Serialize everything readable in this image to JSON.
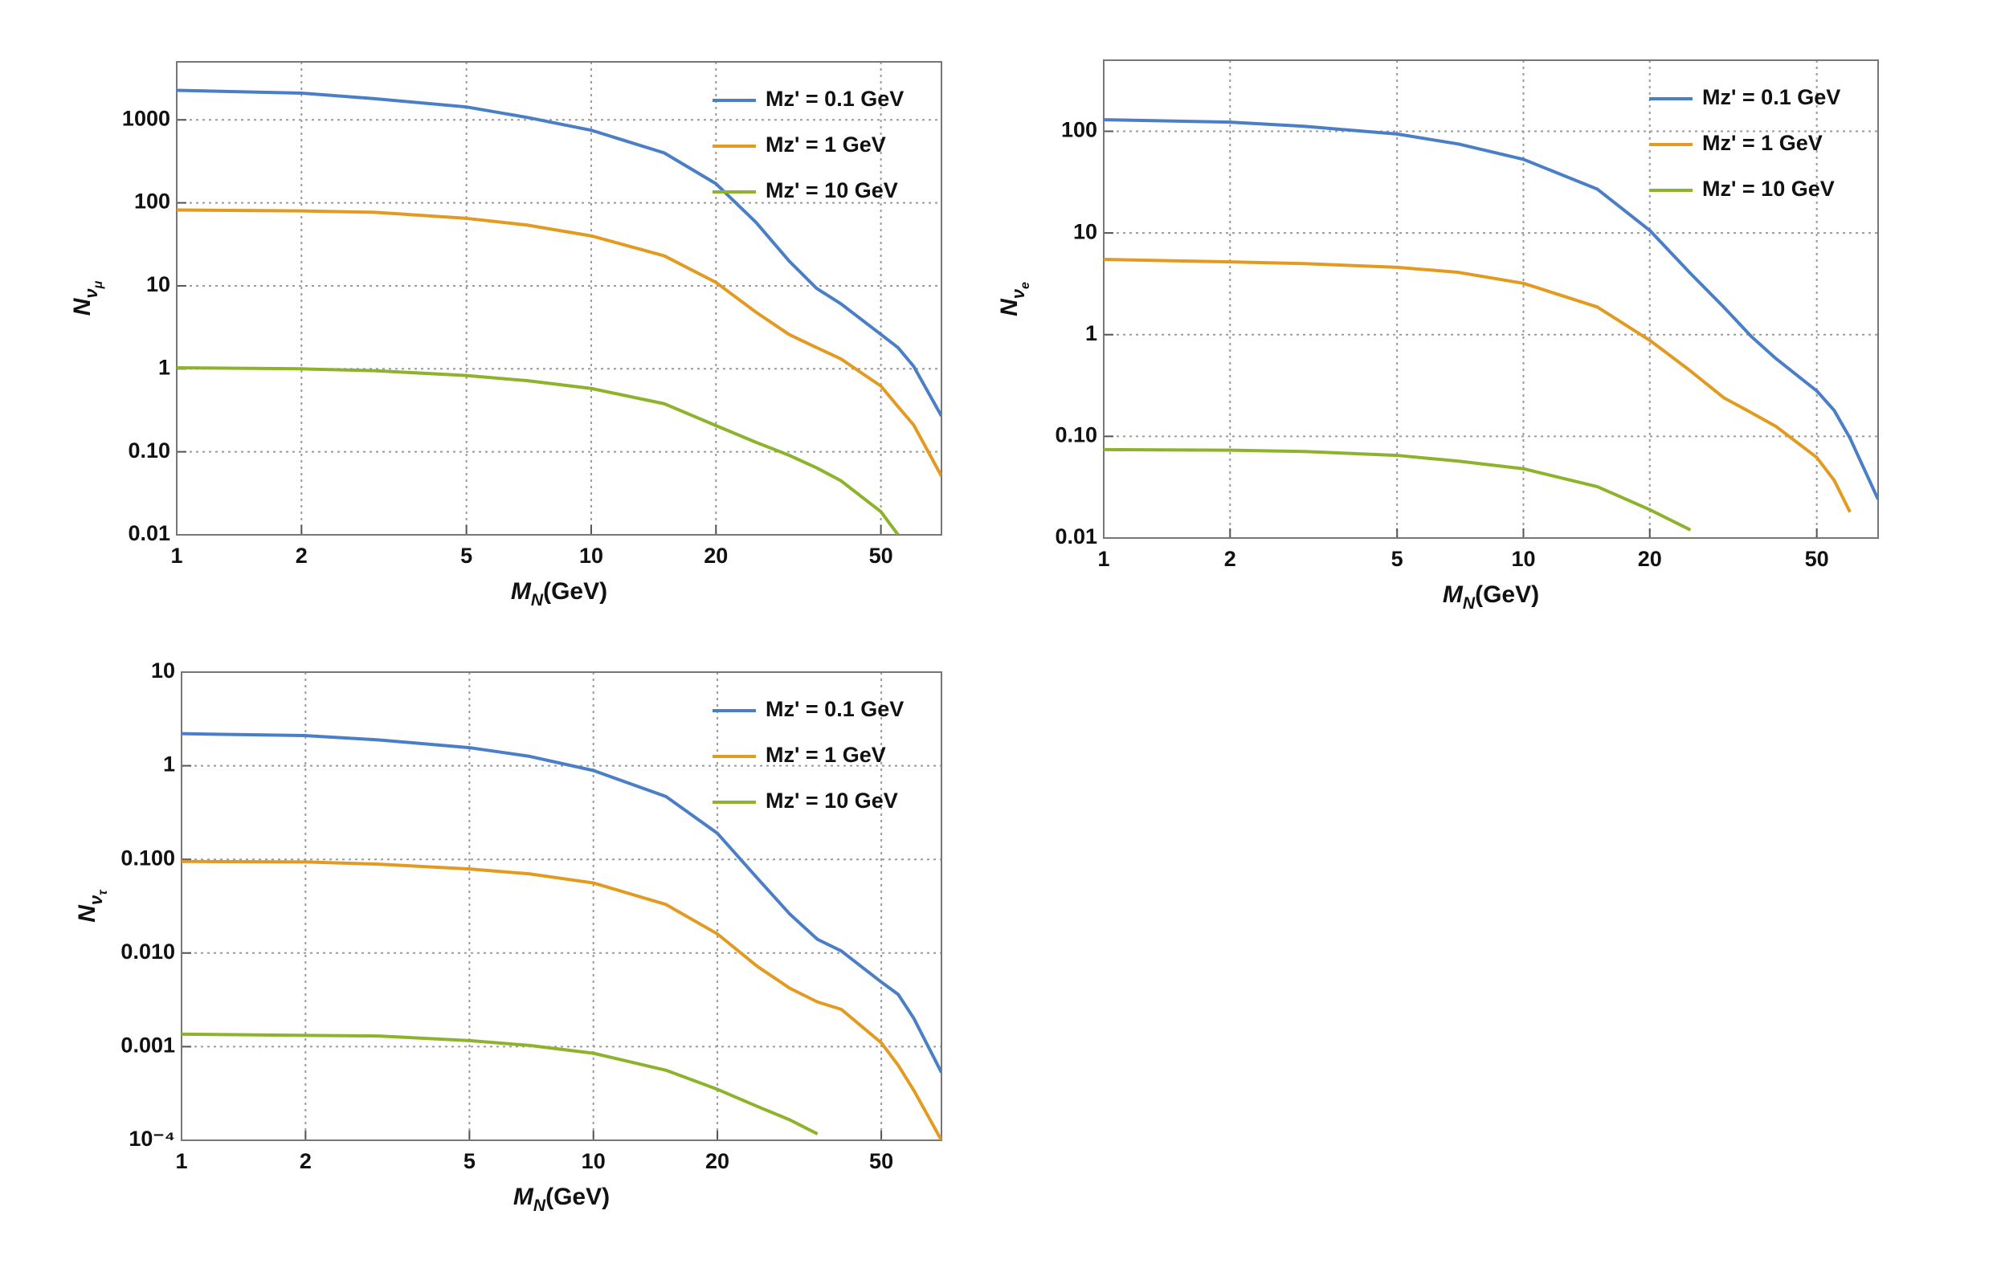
{
  "chart_data": [
    {
      "type": "line",
      "x": [
        1,
        2,
        3,
        5,
        7,
        10,
        15,
        20,
        25,
        30,
        35,
        40,
        50,
        55,
        60,
        70
      ],
      "series": [
        {
          "name": "Mz' = 0.1 GeV",
          "color": "#4a7ec6",
          "values": [
            2270,
            2100,
            1800,
            1430,
            1070,
            750,
            400,
            170,
            58,
            20,
            9.3,
            6.1,
            2.6,
            1.8,
            1.07,
            0.27
          ]
        },
        {
          "name": "Mz' = 1 GeV",
          "color": "#e39a21",
          "values": [
            82,
            80,
            77,
            65,
            54,
            40,
            23,
            11,
            4.8,
            2.6,
            1.8,
            1.32,
            0.62,
            0.35,
            0.21,
            0.051
          ]
        },
        {
          "name": "Mz' = 10 GeV",
          "color": "#8db32d",
          "values": [
            1.03,
            1.0,
            0.95,
            0.83,
            0.72,
            0.58,
            0.38,
            0.207,
            0.13,
            0.091,
            0.064,
            0.045,
            0.019,
            0.01,
            null,
            null
          ]
        }
      ],
      "xlim": [
        1,
        70
      ],
      "ylim": [
        0.01,
        5000
      ],
      "xticks": [
        1,
        2,
        5,
        10,
        20,
        50
      ],
      "yticks": [
        0.01,
        {
          "value": 0.1,
          "label": "0.10"
        },
        1,
        10,
        100,
        1000
      ],
      "xlabel": [
        "M",
        "N",
        "(GeV)"
      ],
      "ylabel": [
        "N",
        "ν",
        "μ"
      ],
      "log_x": true,
      "log_y": true,
      "grid": true,
      "legend": "top-right"
    },
    {
      "type": "line",
      "x": [
        1,
        2,
        3,
        5,
        7,
        10,
        15,
        20,
        25,
        30,
        35,
        40,
        50,
        55,
        60,
        70
      ],
      "series": [
        {
          "name": "Mz' = 0.1 GeV",
          "color": "#4a7ec6",
          "values": [
            130,
            123,
            112,
            94,
            75,
            53,
            27,
            10.6,
            4,
            1.87,
            0.95,
            0.58,
            0.28,
            0.18,
            0.096,
            0.024
          ]
        },
        {
          "name": "Mz' = 1 GeV",
          "color": "#e39a21",
          "values": [
            5.5,
            5.2,
            5.0,
            4.6,
            4.1,
            3.2,
            1.87,
            0.88,
            0.44,
            0.24,
            0.17,
            0.125,
            0.062,
            0.037,
            0.018,
            null
          ]
        },
        {
          "name": "Mz' = 10 GeV",
          "color": "#8db32d",
          "values": [
            0.074,
            0.073,
            0.071,
            0.065,
            0.057,
            0.048,
            0.032,
            0.019,
            0.012,
            null,
            null,
            null,
            null,
            null,
            null,
            null
          ]
        }
      ],
      "xlim": [
        1,
        70
      ],
      "ylim": [
        0.01,
        500
      ],
      "xticks": [
        1,
        2,
        5,
        10,
        20,
        50
      ],
      "yticks": [
        0.01,
        {
          "value": 0.1,
          "label": "0.10"
        },
        1,
        10,
        100
      ],
      "xlabel": [
        "M",
        "N",
        "(GeV)"
      ],
      "ylabel": [
        "N",
        "ν",
        "e"
      ],
      "log_x": true,
      "log_y": true,
      "grid": true,
      "legend": "top-right"
    },
    {
      "type": "line",
      "x": [
        1,
        2,
        3,
        5,
        7,
        10,
        15,
        20,
        25,
        30,
        35,
        40,
        50,
        55,
        60,
        70
      ],
      "series": [
        {
          "name": "Mz' = 0.1 GeV",
          "color": "#4a7ec6",
          "values": [
            2.2,
            2.1,
            1.89,
            1.56,
            1.26,
            0.89,
            0.47,
            0.19,
            0.063,
            0.026,
            0.014,
            0.0105,
            0.0049,
            0.0036,
            0.002,
            0.00053
          ]
        },
        {
          "name": "Mz' = 1 GeV",
          "color": "#e39a21",
          "values": [
            0.095,
            0.094,
            0.089,
            0.079,
            0.07,
            0.056,
            0.033,
            0.016,
            0.0072,
            0.0042,
            0.003,
            0.0025,
            0.0011,
            0.00063,
            0.00034,
            0.0001
          ]
        },
        {
          "name": "Mz' = 10 GeV",
          "color": "#8db32d",
          "values": [
            0.00136,
            0.00132,
            0.0013,
            0.00116,
            0.00103,
            0.00085,
            0.00056,
            0.00035,
            0.00023,
            0.000165,
            0.000117,
            null,
            null,
            null,
            null,
            null
          ]
        }
      ],
      "xlim": [
        1,
        70
      ],
      "ylim": [
        0.0001,
        10
      ],
      "xticks": [
        1,
        2,
        5,
        10,
        20,
        50
      ],
      "yticks": [
        {
          "value": 0.0001,
          "label": "10⁻⁴"
        },
        0.001,
        {
          "value": 0.01,
          "label": "0.010"
        },
        {
          "value": 0.1,
          "label": "0.100"
        },
        1,
        10
      ],
      "xlabel": [
        "M",
        "N",
        "(GeV)"
      ],
      "ylabel": [
        "N",
        "ν",
        "τ"
      ],
      "log_x": true,
      "log_y": true,
      "grid": true,
      "legend": "top-right"
    }
  ]
}
